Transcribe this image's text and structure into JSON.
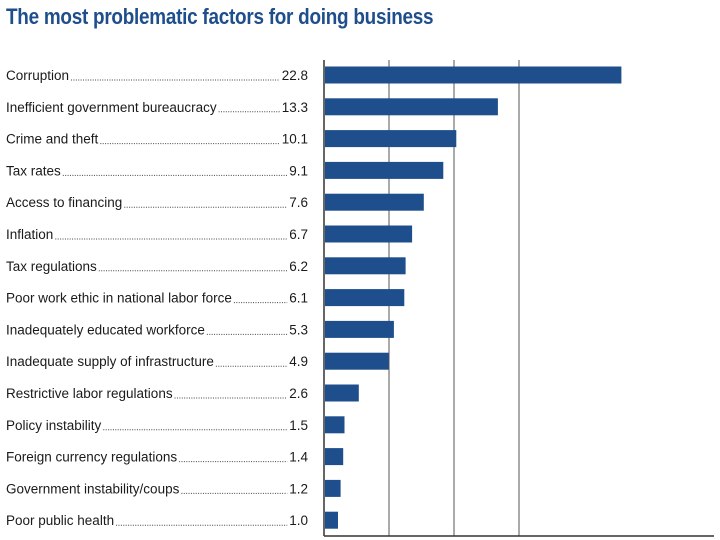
{
  "chart_data": {
    "type": "bar",
    "orientation": "horizontal",
    "title": "The most problematic factors for doing business",
    "categories": [
      "Corruption",
      "Inefficient government bureaucracy",
      "Crime and theft",
      "Tax rates",
      "Access to financing",
      "Inflation",
      "Tax regulations",
      "Poor work ethic in national labor force",
      "Inadequately educated workforce",
      "Inadequate supply of infrastructure",
      "Restrictive labor regulations",
      "Policy instability",
      "Foreign currency regulations",
      "Government instability/coups",
      "Poor public health"
    ],
    "values": [
      22.8,
      13.3,
      10.1,
      9.1,
      7.6,
      6.7,
      6.2,
      6.1,
      5.3,
      4.9,
      2.6,
      1.5,
      1.4,
      1.2,
      1.0
    ],
    "value_labels": [
      "22.8",
      "13.3",
      "10.1",
      "9.1",
      "7.6",
      "6.7",
      "6.2",
      "6.1",
      "5.3",
      "4.9",
      "2.6",
      "1.5",
      "1.4",
      "1.2",
      "1.0"
    ],
    "xlim": [
      0,
      30
    ],
    "grid": true,
    "bar_color": "#1f4e8c",
    "title_color": "#1f4e8c"
  }
}
